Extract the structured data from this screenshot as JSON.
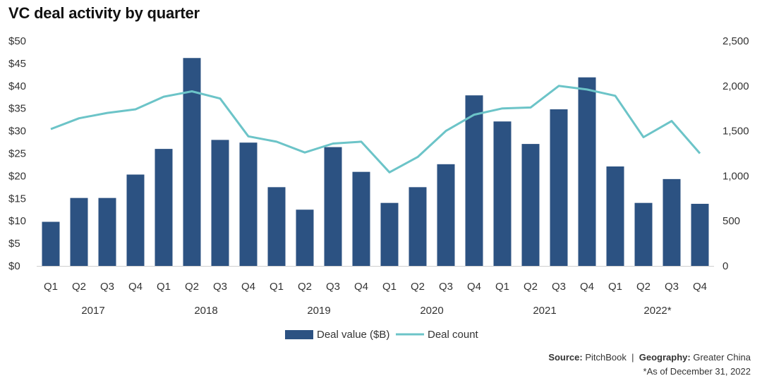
{
  "chart_data": {
    "type": "bar",
    "title": "VC deal activity by quarter",
    "categories": [
      "Q1",
      "Q2",
      "Q3",
      "Q4",
      "Q1",
      "Q2",
      "Q3",
      "Q4",
      "Q1",
      "Q2",
      "Q3",
      "Q4",
      "Q1",
      "Q2",
      "Q3",
      "Q4",
      "Q1",
      "Q2",
      "Q3",
      "Q4",
      "Q1",
      "Q2",
      "Q3",
      "Q4"
    ],
    "years": [
      {
        "label": "2017",
        "start": 0,
        "end": 3
      },
      {
        "label": "2018",
        "start": 4,
        "end": 7
      },
      {
        "label": "2019",
        "start": 8,
        "end": 11
      },
      {
        "label": "2020",
        "start": 12,
        "end": 15
      },
      {
        "label": "2021",
        "start": 16,
        "end": 19
      },
      {
        "label": "2022*",
        "start": 20,
        "end": 23
      }
    ],
    "series": [
      {
        "name": "Deal value ($B)",
        "type": "bar",
        "axis": "left",
        "color": "#2c5282",
        "values": [
          9.8,
          15.1,
          15.1,
          20.3,
          26.0,
          46.2,
          28.0,
          27.4,
          17.5,
          12.5,
          26.4,
          20.9,
          14.0,
          17.5,
          22.6,
          37.9,
          32.1,
          27.1,
          34.8,
          41.9,
          22.1,
          14.0,
          19.3,
          13.8
        ]
      },
      {
        "name": "Deal count",
        "type": "line",
        "axis": "right",
        "color": "#6cc4c8",
        "values": [
          1520,
          1640,
          1700,
          1740,
          1880,
          1940,
          1860,
          1440,
          1380,
          1260,
          1360,
          1380,
          1040,
          1210,
          1500,
          1680,
          1750,
          1760,
          2000,
          1960,
          1890,
          1430,
          1610,
          1250
        ]
      }
    ],
    "yleft": {
      "ylim": [
        0,
        50
      ],
      "ticks": [
        "$0",
        "$5",
        "$10",
        "$15",
        "$20",
        "$25",
        "$30",
        "$35",
        "$40",
        "$45",
        "$50"
      ]
    },
    "yright": {
      "ylim": [
        0,
        2500
      ],
      "ticks": [
        "0",
        "500",
        "1,000",
        "1,500",
        "2,000",
        "2,500"
      ]
    },
    "legend": {
      "position": "bottom-center"
    }
  },
  "footer": {
    "source_label": "Source:",
    "source_value": "PitchBook",
    "separator": "|",
    "geography_label": "Geography:",
    "geography_value": "Greater China",
    "note": "*As of December 31, 2022"
  }
}
